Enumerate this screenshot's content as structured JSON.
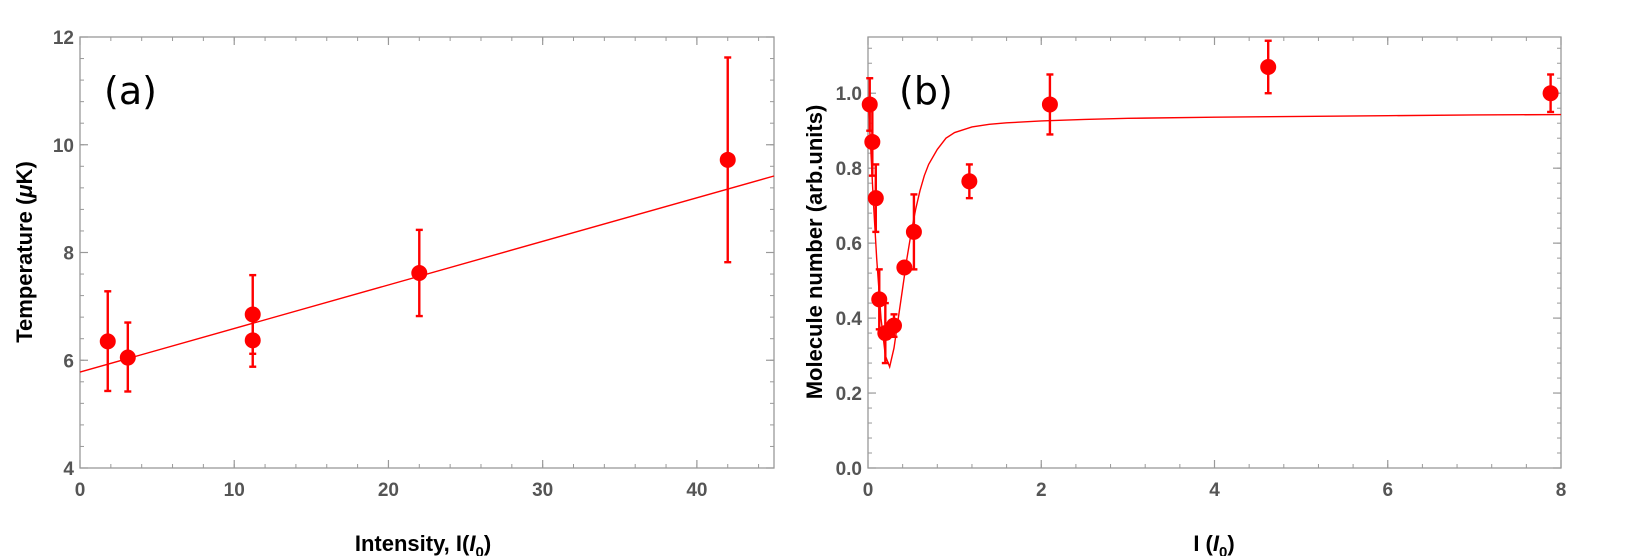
{
  "chart_data": [
    {
      "type": "scatter",
      "panel_label": "(a)",
      "title": "",
      "xlabel_main": "Intensity, I(",
      "xlabel_italic": "I",
      "xlabel_sub": "0",
      "xlabel_close": ")",
      "ylabel_pre": "Temperature (",
      "ylabel_mu": "μ",
      "ylabel_post": "K)",
      "xlim": [
        0,
        45
      ],
      "ylim": [
        4,
        12
      ],
      "xticks": [
        0,
        10,
        20,
        30,
        40
      ],
      "xticklabels": [
        "0",
        "10",
        "20",
        "30",
        "40"
      ],
      "yticks": [
        4,
        6,
        8,
        10,
        12
      ],
      "yticklabels": [
        "4",
        "6",
        "8",
        "10",
        "12"
      ],
      "x_minor_step": 2,
      "y_minor_step": 0.4,
      "series": [
        {
          "name": "data",
          "x": [
            1.8,
            3.1,
            11.2,
            11.2,
            22.0,
            42.0
          ],
          "y": [
            6.35,
            6.05,
            6.85,
            6.37,
            7.62,
            9.72
          ],
          "y_low": [
            5.43,
            5.42,
            6.12,
            5.88,
            6.82,
            7.82
          ],
          "y_high": [
            7.28,
            6.7,
            7.58,
            6.9,
            8.42,
            11.62
          ]
        }
      ],
      "fit": {
        "type": "linear",
        "x": [
          0,
          45
        ],
        "y": [
          5.78,
          9.42
        ]
      },
      "color": "#ff0000"
    },
    {
      "type": "scatter",
      "panel_label": "(b)",
      "title": "",
      "xlabel_main": "I (",
      "xlabel_italic": "I",
      "xlabel_sub": "0",
      "xlabel_close": ")",
      "ylabel": "Molecule number (arb.units)",
      "xlim": [
        0,
        8
      ],
      "ylim": [
        0,
        1.15
      ],
      "xticks": [
        0,
        2,
        4,
        6,
        8
      ],
      "xticklabels": [
        "0",
        "2",
        "4",
        "6",
        "8"
      ],
      "yticks": [
        0,
        0.2,
        0.4,
        0.6,
        0.8,
        1.0
      ],
      "yticklabels": [
        "0.0",
        "0.2",
        "0.4",
        "0.6",
        "0.8",
        "1.0"
      ],
      "x_minor_step": 0.4,
      "y_minor_step": 0.04,
      "series": [
        {
          "name": "data",
          "x": [
            0.02,
            0.05,
            0.09,
            0.13,
            0.2,
            0.3,
            0.42,
            0.53,
            1.17,
            2.1,
            4.62,
            7.88
          ],
          "y": [
            0.97,
            0.87,
            0.72,
            0.45,
            0.36,
            0.38,
            0.535,
            0.63,
            0.765,
            0.97,
            1.07,
            1.0
          ],
          "y_low": [
            0.9,
            0.78,
            0.63,
            0.37,
            0.28,
            0.35,
            0.535,
            0.53,
            0.72,
            0.89,
            1.0,
            0.95
          ],
          "y_high": [
            1.04,
            0.96,
            0.81,
            0.53,
            0.44,
            0.41,
            0.535,
            0.73,
            0.81,
            1.05,
            1.14,
            1.05
          ]
        }
      ],
      "fit": {
        "type": "curve",
        "x": [
          0,
          0.03,
          0.06,
          0.1,
          0.15,
          0.2,
          0.25,
          0.3,
          0.35,
          0.4,
          0.45,
          0.5,
          0.55,
          0.6,
          0.65,
          0.7,
          0.8,
          0.9,
          1.0,
          1.2,
          1.4,
          1.6,
          2.0,
          2.5,
          3.0,
          4.0,
          5.0,
          6.0,
          7.0,
          8.0
        ],
        "y": [
          0.99,
          0.86,
          0.72,
          0.56,
          0.4,
          0.3,
          0.27,
          0.32,
          0.4,
          0.48,
          0.56,
          0.63,
          0.69,
          0.74,
          0.78,
          0.81,
          0.85,
          0.88,
          0.895,
          0.91,
          0.917,
          0.921,
          0.926,
          0.93,
          0.933,
          0.936,
          0.938,
          0.94,
          0.942,
          0.943
        ]
      },
      "color": "#ff0000"
    }
  ]
}
